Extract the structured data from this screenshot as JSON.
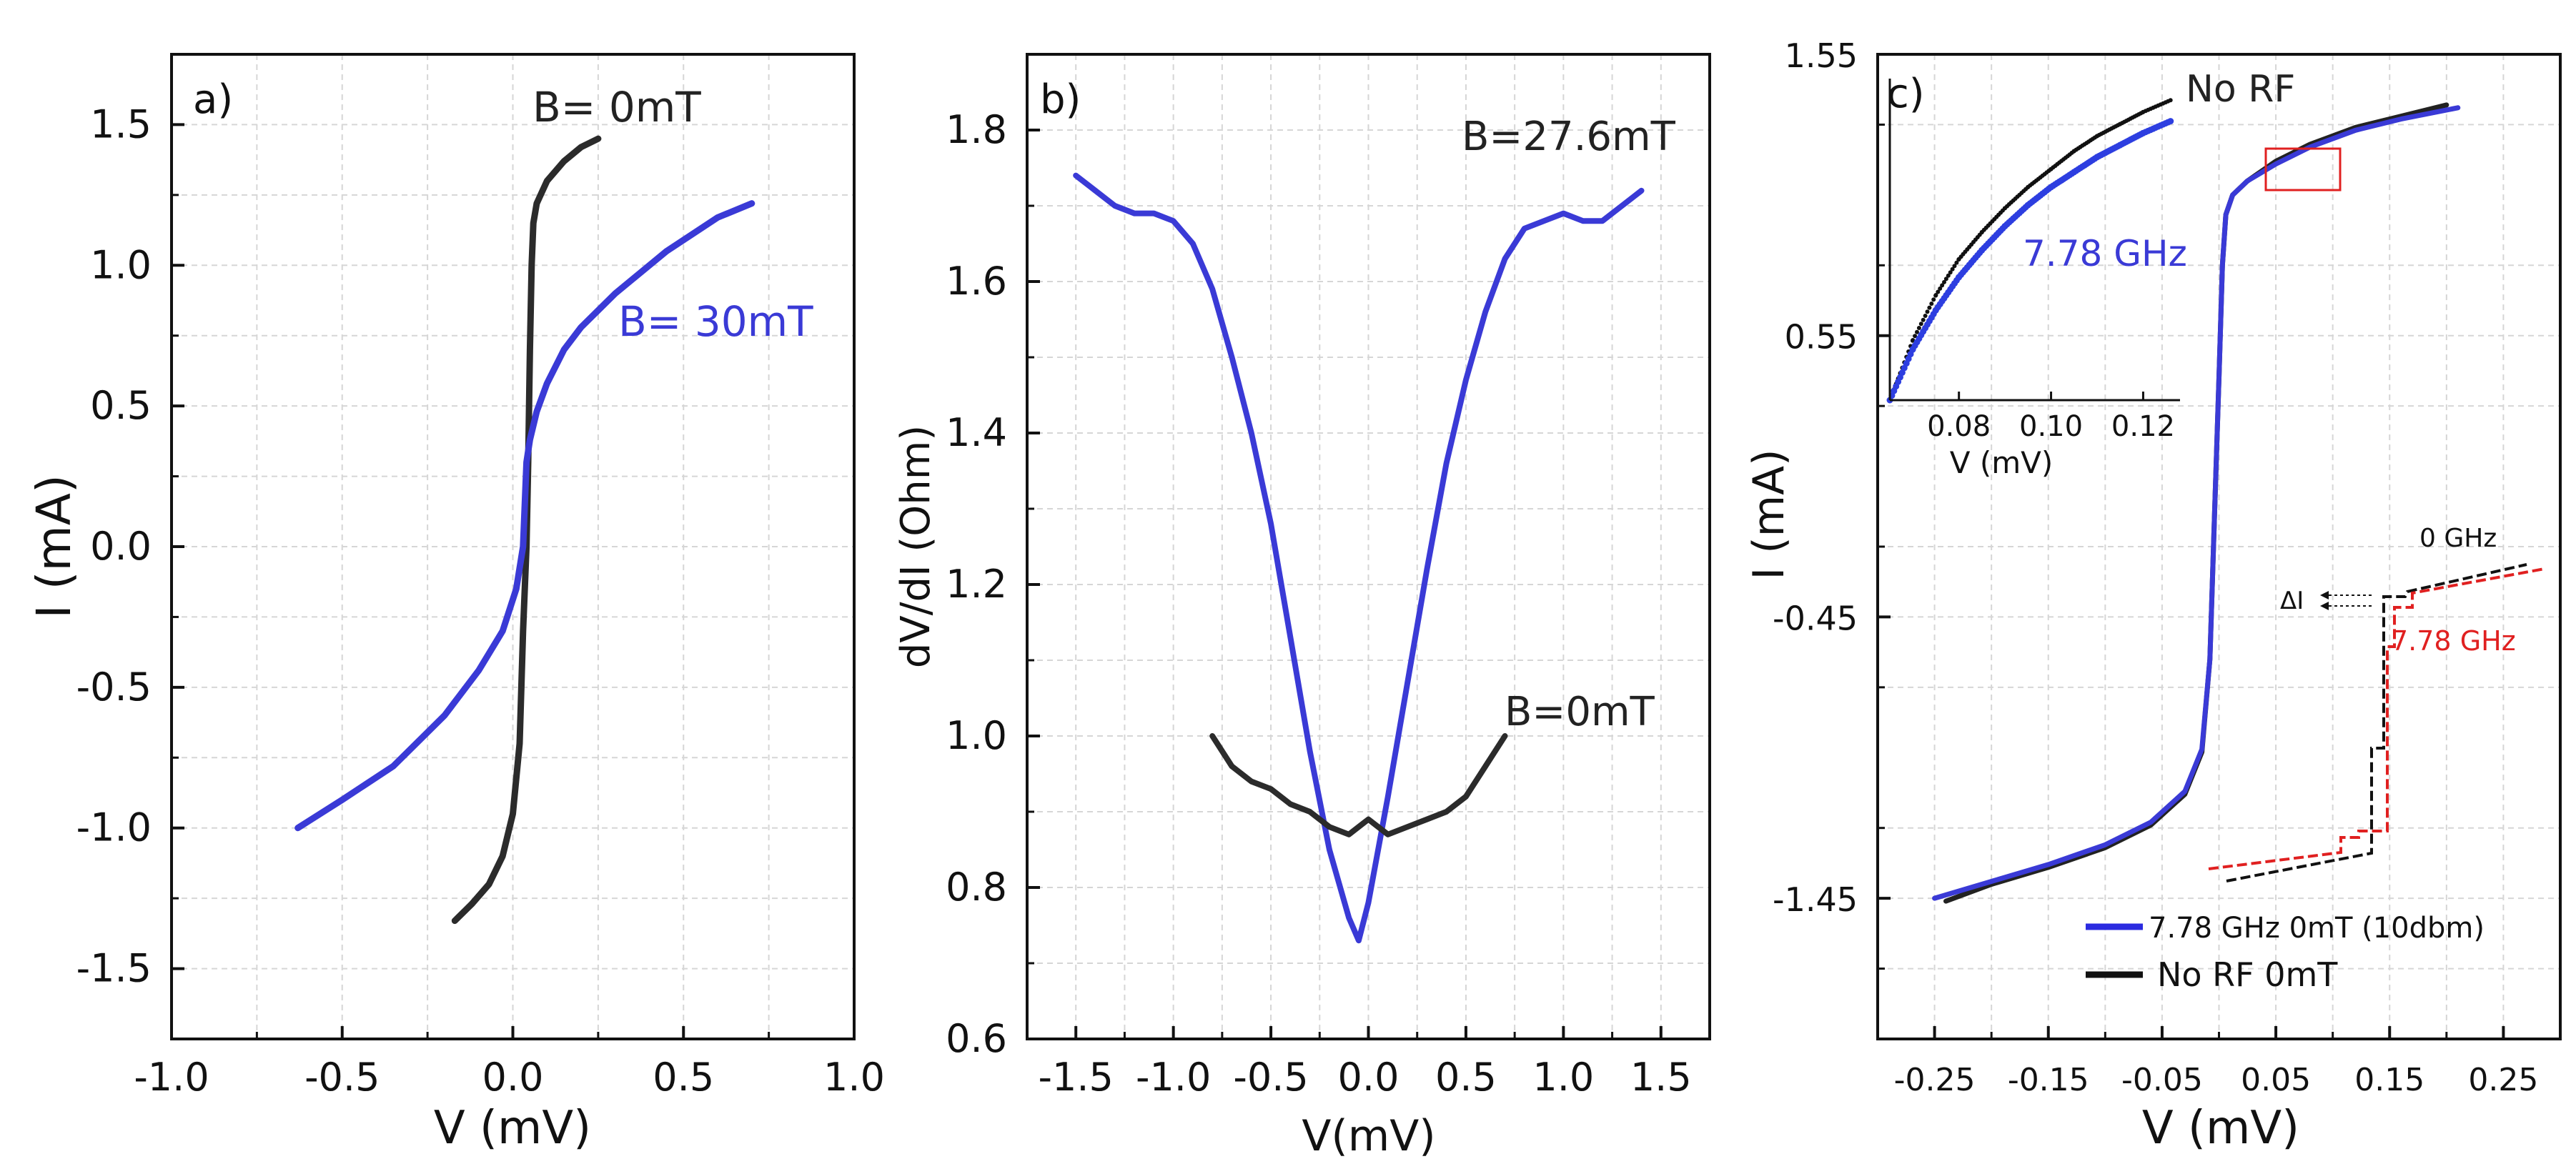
{
  "chart_data": [
    {
      "panel": "a",
      "type": "line",
      "panel_label": "a)",
      "xlabel": "V (mV)",
      "ylabel": "I (mA)",
      "xlim": [
        -1.0,
        1.0
      ],
      "ylim": [
        -1.75,
        1.75
      ],
      "xticks": [
        -1.0,
        -0.5,
        0.0,
        0.5,
        1.0
      ],
      "xtick_labels": [
        "-1.0",
        "-0.5",
        "0.0",
        "0.5",
        "1.0"
      ],
      "yticks": [
        -1.5,
        -1.0,
        -0.5,
        0.0,
        0.5,
        1.0,
        1.5
      ],
      "ytick_labels": [
        "-1.5",
        "-1.0",
        "-0.5",
        "0.0",
        "0.5",
        "1.0",
        "1.5"
      ],
      "grid": true,
      "series": [
        {
          "name": "B= 0mT",
          "color": "#2b2b2b",
          "x": [
            -0.17,
            -0.12,
            -0.07,
            -0.03,
            0.0,
            0.02,
            0.03,
            0.04,
            0.045,
            0.05,
            0.055,
            0.06,
            0.07,
            0.1,
            0.15,
            0.2,
            0.25
          ],
          "y": [
            -1.33,
            -1.27,
            -1.2,
            -1.1,
            -0.95,
            -0.7,
            -0.3,
            0.0,
            0.3,
            0.7,
            1.0,
            1.15,
            1.22,
            1.3,
            1.37,
            1.42,
            1.45
          ]
        },
        {
          "name": "B= 30mT",
          "color": "#3a3ad6",
          "x": [
            -0.63,
            -0.5,
            -0.35,
            -0.2,
            -0.1,
            -0.03,
            0.01,
            0.03,
            0.04,
            0.05,
            0.07,
            0.1,
            0.15,
            0.2,
            0.3,
            0.45,
            0.6,
            0.7
          ],
          "y": [
            -1.0,
            -0.9,
            -0.78,
            -0.6,
            -0.44,
            -0.3,
            -0.15,
            0.0,
            0.3,
            0.38,
            0.48,
            0.58,
            0.7,
            0.78,
            0.9,
            1.05,
            1.17,
            1.22
          ]
        }
      ],
      "annotations": [
        {
          "text": "B= 0mT",
          "color": "#222222"
        },
        {
          "text": "B= 30mT",
          "color": "#3a3ad6"
        }
      ]
    },
    {
      "panel": "b",
      "type": "line",
      "panel_label": "b)",
      "xlabel": "V(mV)",
      "ylabel": "dV/dI (Ohm)",
      "xlim": [
        -1.75,
        1.75
      ],
      "ylim": [
        0.6,
        1.9
      ],
      "xticks": [
        -1.5,
        -1.0,
        -0.5,
        0.0,
        0.5,
        1.0,
        1.5
      ],
      "xtick_labels": [
        "-1.5",
        "-1.0",
        "-0.5",
        "0.0",
        "0.5",
        "1.0",
        "1.5"
      ],
      "yticks": [
        0.6,
        0.8,
        1.0,
        1.2,
        1.4,
        1.6,
        1.8
      ],
      "ytick_labels": [
        "0.6",
        "0.8",
        "1.0",
        "1.2",
        "1.4",
        "1.6",
        "1.8"
      ],
      "grid": true,
      "series": [
        {
          "name": "B=27.6mT",
          "color": "#3a3ad6",
          "x": [
            -1.5,
            -1.4,
            -1.3,
            -1.2,
            -1.1,
            -1.0,
            -0.9,
            -0.8,
            -0.7,
            -0.6,
            -0.5,
            -0.4,
            -0.3,
            -0.2,
            -0.1,
            -0.05,
            0.0,
            0.1,
            0.2,
            0.3,
            0.4,
            0.5,
            0.6,
            0.7,
            0.8,
            0.9,
            1.0,
            1.1,
            1.2,
            1.3,
            1.4
          ],
          "y": [
            1.74,
            1.72,
            1.7,
            1.69,
            1.69,
            1.68,
            1.65,
            1.59,
            1.5,
            1.4,
            1.28,
            1.13,
            0.98,
            0.85,
            0.76,
            0.73,
            0.78,
            0.92,
            1.07,
            1.22,
            1.36,
            1.47,
            1.56,
            1.63,
            1.67,
            1.68,
            1.69,
            1.68,
            1.68,
            1.7,
            1.72
          ]
        },
        {
          "name": "B=0mT",
          "color": "#2b2b2b",
          "x": [
            -0.8,
            -0.7,
            -0.6,
            -0.5,
            -0.4,
            -0.3,
            -0.2,
            -0.1,
            0.0,
            0.1,
            0.2,
            0.3,
            0.4,
            0.5,
            0.6,
            0.7
          ],
          "y": [
            1.0,
            0.96,
            0.94,
            0.93,
            0.91,
            0.9,
            0.88,
            0.87,
            0.89,
            0.87,
            0.88,
            0.89,
            0.9,
            0.92,
            0.96,
            1.0
          ]
        }
      ],
      "annotations": [
        {
          "text": "B=27.6mT",
          "color": "#222222"
        },
        {
          "text": "B=0mT",
          "color": "#222222"
        }
      ]
    },
    {
      "panel": "c",
      "type": "line",
      "panel_label": "c)",
      "xlabel": "V (mV)",
      "ylabel": "I (mA)",
      "xlim": [
        -0.3,
        0.3
      ],
      "ylim": [
        -1.95,
        1.55
      ],
      "xticks": [
        -0.25,
        -0.15,
        -0.05,
        0.05,
        0.15,
        0.25
      ],
      "xtick_labels": [
        "-0.25",
        "-0.15",
        "-0.05",
        "0.05",
        "0.15",
        "0.25"
      ],
      "yticks": [
        -1.45,
        -0.45,
        0.55,
        1.55
      ],
      "ytick_labels": [
        "-1.45",
        "-0.45",
        "0.55",
        "1.55"
      ],
      "grid": true,
      "series": [
        {
          "name": "No RF",
          "color": "#222222",
          "x": [
            -0.24,
            -0.2,
            -0.15,
            -0.1,
            -0.06,
            -0.03,
            -0.015,
            -0.008,
            -0.004,
            0.0,
            0.003,
            0.006,
            0.012,
            0.025,
            0.05,
            0.08,
            0.12,
            0.16,
            0.2
          ],
          "y": [
            -1.46,
            -1.4,
            -1.34,
            -1.27,
            -1.19,
            -1.08,
            -0.93,
            -0.6,
            -0.1,
            0.4,
            0.8,
            0.98,
            1.05,
            1.1,
            1.17,
            1.23,
            1.29,
            1.33,
            1.37
          ]
        },
        {
          "name": "7.78 GHz 0mT (10dbm)",
          "color": "#3a3ad6",
          "x": [
            -0.25,
            -0.2,
            -0.15,
            -0.1,
            -0.06,
            -0.03,
            -0.015,
            -0.008,
            -0.004,
            0.0,
            0.003,
            0.006,
            0.012,
            0.025,
            0.05,
            0.08,
            0.12,
            0.16,
            0.21
          ],
          "y": [
            -1.45,
            -1.39,
            -1.33,
            -1.26,
            -1.18,
            -1.07,
            -0.92,
            -0.6,
            -0.1,
            0.4,
            0.8,
            0.98,
            1.05,
            1.1,
            1.16,
            1.22,
            1.28,
            1.32,
            1.36
          ]
        }
      ],
      "legend": [
        {
          "label": "7.78 GHz 0mT (10dbm)",
          "color": "#2b2be0"
        },
        {
          "label": "No RF 0mT",
          "color": "#111111"
        }
      ],
      "legend_placement": "bottom-right",
      "inset": {
        "xlabel": "V (mV)",
        "xtick_labels": [
          "0.08",
          "0.10",
          "0.12"
        ],
        "xlim": [
          0.065,
          0.128
        ],
        "series": [
          {
            "name": "No RF",
            "color": "#111111",
            "x": [
              0.065,
              0.07,
              0.075,
              0.08,
              0.085,
              0.09,
              0.095,
              0.1,
              0.105,
              0.11,
              0.115,
              0.12,
              0.126
            ],
            "y": [
              0.0,
              0.2,
              0.35,
              0.47,
              0.56,
              0.64,
              0.71,
              0.77,
              0.83,
              0.88,
              0.92,
              0.96,
              1.0
            ]
          },
          {
            "name": "7.78 GHz",
            "color": "#2d3ee0",
            "x": [
              0.065,
              0.07,
              0.075,
              0.08,
              0.085,
              0.09,
              0.095,
              0.1,
              0.105,
              0.11,
              0.115,
              0.12,
              0.126
            ],
            "y": [
              0.0,
              0.17,
              0.3,
              0.41,
              0.5,
              0.58,
              0.65,
              0.71,
              0.76,
              0.81,
              0.85,
              0.89,
              0.93
            ]
          }
        ],
        "annotations": [
          {
            "text": "No RF",
            "color": "#222222"
          },
          {
            "text": "7.78 GHz",
            "color": "#3a3ad6"
          }
        ]
      },
      "schematic": {
        "labels": [
          {
            "text": "0 GHz",
            "color": "#111111"
          },
          {
            "text": "ΔI",
            "color": "#111111"
          },
          {
            "text": "7.78 GHz",
            "color": "#e02020"
          }
        ]
      }
    }
  ]
}
